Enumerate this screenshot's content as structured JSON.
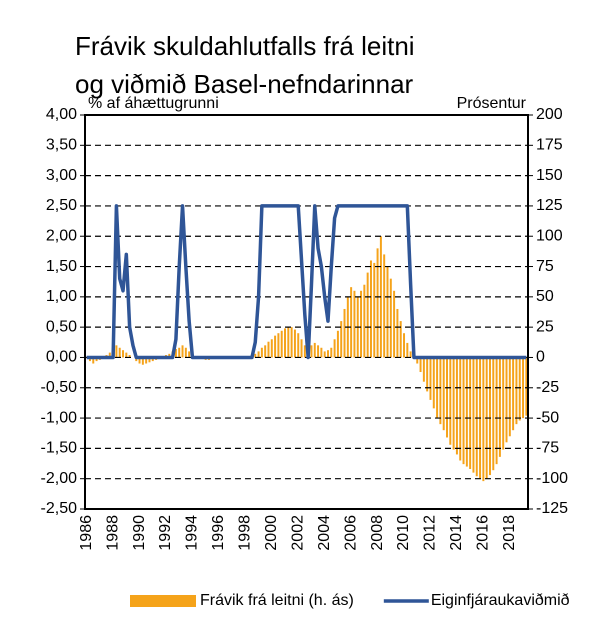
{
  "chart_data": {
    "type": "combo",
    "title_lines": [
      "Frávik skuldahlutfalls frá leitni",
      "og viðmið Basel-nefndarinnar"
    ],
    "ylabel": "% af áhættugrunni",
    "y2label": "Prósentur",
    "categories": [
      "1986",
      null,
      null,
      null,
      null,
      null,
      null,
      null,
      "1988",
      null,
      null,
      null,
      null,
      null,
      null,
      null,
      "1990",
      null,
      null,
      null,
      null,
      null,
      null,
      null,
      "1992",
      null,
      null,
      null,
      null,
      null,
      null,
      null,
      "1994",
      null,
      null,
      null,
      null,
      null,
      null,
      null,
      "1996",
      null,
      null,
      null,
      null,
      null,
      null,
      null,
      "1998",
      null,
      null,
      null,
      null,
      null,
      null,
      null,
      "2000",
      null,
      null,
      null,
      null,
      null,
      null,
      null,
      "2002",
      null,
      null,
      null,
      null,
      null,
      null,
      null,
      "2004",
      null,
      null,
      null,
      null,
      null,
      null,
      null,
      "2006",
      null,
      null,
      null,
      null,
      null,
      null,
      null,
      "2008",
      null,
      null,
      null,
      null,
      null,
      null,
      null,
      "2010",
      null,
      null,
      null,
      null,
      null,
      null,
      null,
      "2012",
      null,
      null,
      null,
      null,
      null,
      null,
      null,
      "2014",
      null,
      null,
      null,
      null,
      null,
      null,
      null,
      "2016",
      null,
      null,
      null,
      null,
      null,
      null,
      null,
      "2018",
      null,
      null,
      null,
      null,
      null
    ],
    "series": [
      {
        "name": "Frávik frá leitni (h. ás)",
        "type": "bar",
        "axis": "y2",
        "color": "#f5a31a",
        "values": [
          0,
          -3,
          -5,
          -3,
          -2,
          0,
          2,
          4,
          8,
          10,
          8,
          6,
          4,
          2,
          0,
          -3,
          -5,
          -6,
          -5,
          -4,
          -3,
          -2,
          -1,
          0,
          2,
          3,
          5,
          7,
          8,
          10,
          8,
          5,
          3,
          1,
          0,
          -1,
          -2,
          -2,
          -1,
          -1,
          0,
          0,
          -1,
          -1,
          -1,
          0,
          0,
          0,
          0,
          1,
          2,
          3,
          5,
          8,
          10,
          13,
          15,
          18,
          20,
          22,
          24,
          25,
          25,
          23,
          20,
          15,
          10,
          8,
          10,
          12,
          10,
          8,
          5,
          6,
          8,
          15,
          22,
          30,
          40,
          50,
          58,
          55,
          50,
          55,
          60,
          70,
          80,
          78,
          90,
          100,
          85,
          75,
          65,
          55,
          40,
          30,
          20,
          12,
          5,
          0,
          -5,
          -12,
          -20,
          -28,
          -35,
          -42,
          -50,
          -55,
          -60,
          -66,
          -72,
          -76,
          -80,
          -85,
          -88,
          -90,
          -92,
          -95,
          -98,
          -100,
          -102,
          -100,
          -97,
          -93,
          -88,
          -82,
          -76,
          -70,
          -65,
          -60,
          -55,
          -52,
          -50,
          -48
        ]
      },
      {
        "name": "Eiginfjáraukaviðmið",
        "type": "line",
        "axis": "y",
        "color": "#2f5597",
        "values": [
          0,
          0,
          0,
          0,
          0,
          0,
          0,
          0,
          0,
          2.5,
          1.3,
          1.1,
          1.7,
          0.5,
          0.2,
          0,
          0,
          0,
          0,
          0,
          0,
          0,
          0,
          0,
          0,
          0,
          0,
          0.3,
          1.5,
          2.5,
          1.5,
          0.6,
          0,
          0,
          0,
          0,
          0,
          0,
          0,
          0,
          0,
          0,
          0,
          0,
          0,
          0,
          0,
          0,
          0,
          0,
          0,
          0.25,
          1.0,
          2.5,
          2.5,
          2.5,
          2.5,
          2.5,
          2.5,
          2.5,
          2.5,
          2.5,
          2.5,
          2.5,
          2.5,
          1.6,
          0.7,
          0,
          1.2,
          2.5,
          1.8,
          1.5,
          1.0,
          0.6,
          1.5,
          2.3,
          2.5,
          2.5,
          2.5,
          2.5,
          2.5,
          2.5,
          2.5,
          2.5,
          2.5,
          2.5,
          2.5,
          2.5,
          2.5,
          2.5,
          2.5,
          2.5,
          2.5,
          2.5,
          2.5,
          2.5,
          2.5,
          2.5,
          1.2,
          0,
          0,
          0,
          0,
          0,
          0,
          0,
          0,
          0,
          0,
          0,
          0,
          0,
          0,
          0,
          0,
          0,
          0,
          0,
          0,
          0,
          0,
          0,
          0,
          0,
          0,
          0,
          0,
          0,
          0,
          0,
          0,
          0,
          0,
          0
        ]
      }
    ],
    "ylim": [
      -2.5,
      4.0
    ],
    "yticks": [
      {
        "value": 4.0,
        "label": "4,00"
      },
      {
        "value": 3.5,
        "label": "3,50"
      },
      {
        "value": 3.0,
        "label": "3,00"
      },
      {
        "value": 2.5,
        "label": "2,50"
      },
      {
        "value": 2.0,
        "label": "2,00"
      },
      {
        "value": 1.5,
        "label": "1,50"
      },
      {
        "value": 1.0,
        "label": "1,00"
      },
      {
        "value": 0.5,
        "label": "0,50"
      },
      {
        "value": 0,
        "label": "0,00"
      },
      {
        "value": -0.5,
        "label": "-0,50"
      },
      {
        "value": -1.0,
        "label": "-1,00"
      },
      {
        "value": -1.5,
        "label": "-1,50"
      },
      {
        "value": -2.0,
        "label": "-2,00"
      },
      {
        "value": -2.5,
        "label": "-2,50"
      }
    ],
    "y2lim": [
      -125,
      200
    ],
    "y2ticks": [
      200,
      175,
      150,
      125,
      100,
      75,
      50,
      25,
      0,
      -25,
      -50,
      -75,
      -100,
      -125
    ],
    "grid": true,
    "legend": "bottom"
  }
}
